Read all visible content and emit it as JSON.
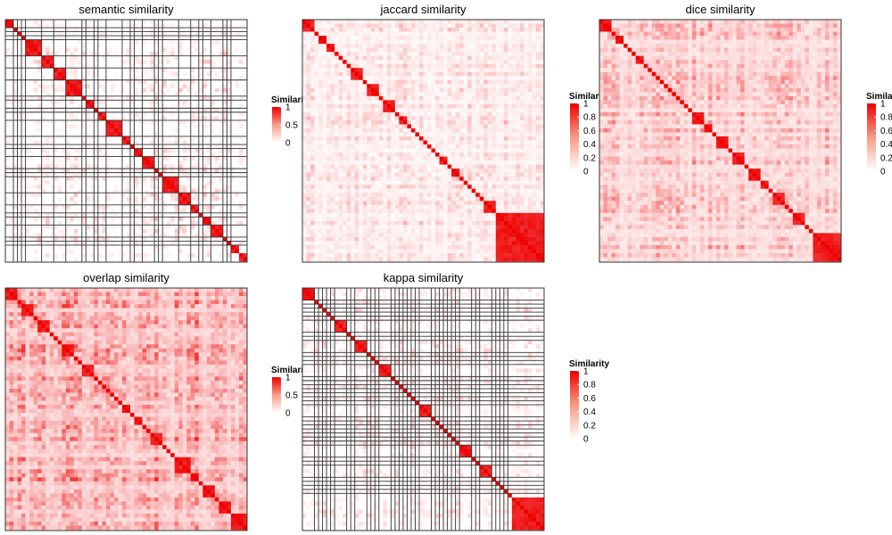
{
  "chart_data": [
    {
      "type": "heatmap",
      "title": "semantic similarity",
      "legend": {
        "title": "Similarity",
        "ticks": [
          "1",
          "0.5",
          "0"
        ],
        "range": [
          0,
          1
        ]
      },
      "matrix_size": 60,
      "diagonal_clusters": [
        2,
        1,
        1,
        1,
        4,
        3,
        3,
        4,
        1,
        2,
        1,
        2,
        4,
        2,
        1,
        2,
        3,
        1,
        1,
        4,
        3,
        2,
        1,
        2,
        3,
        1,
        1,
        2
      ],
      "cluster_borders": true,
      "background_similarity": [
        0,
        0.2
      ],
      "colors": {
        "low": "#ffffff",
        "high": "#ee0000"
      }
    },
    {
      "type": "heatmap",
      "title": "jaccard similarity",
      "legend": {
        "title": "Similarity",
        "ticks": [
          "1",
          "0.8",
          "0.6",
          "0.4",
          "0.2",
          "0"
        ],
        "range": [
          0,
          1
        ]
      },
      "matrix_size": 60,
      "diagonal_clusters": [
        3,
        1,
        2,
        2,
        1,
        1,
        1,
        1,
        3,
        1,
        3,
        1,
        3,
        1,
        2,
        1,
        1,
        1,
        1,
        1,
        1,
        1,
        1,
        2,
        1,
        2,
        1,
        1,
        1,
        1,
        1,
        1,
        3
      ],
      "cluster_borders": false,
      "background_similarity": [
        0.02,
        0.18
      ],
      "colors": {
        "low": "#ffffff",
        "high": "#ee0000"
      }
    },
    {
      "type": "heatmap",
      "title": "dice similarity",
      "legend": {
        "title": "Similarity",
        "ticks": [
          "1",
          "0.8",
          "0.6",
          "0.4",
          "0.2",
          "0"
        ],
        "range": [
          0,
          1
        ]
      },
      "matrix_size": 60,
      "diagonal_clusters": [
        3,
        1,
        2,
        1,
        1,
        1,
        2,
        1,
        1,
        1,
        1,
        1,
        1,
        1,
        1,
        1,
        1,
        1,
        1,
        3,
        2,
        1,
        3,
        1,
        3,
        1,
        3,
        2,
        1,
        3,
        1,
        1,
        3,
        1,
        1
      ],
      "cluster_borders": false,
      "background_similarity": [
        0.08,
        0.35
      ],
      "colors": {
        "low": "#ffffff",
        "high": "#ee0000"
      }
    },
    {
      "type": "heatmap",
      "title": "overlap similarity",
      "legend": {
        "title": "Similarity",
        "ticks": [
          "1",
          "0.5",
          "0"
        ],
        "range": [
          0,
          1
        ]
      },
      "matrix_size": 60,
      "diagonal_clusters": [
        3,
        1,
        3,
        1,
        3,
        1,
        1,
        1,
        3,
        1,
        1,
        3,
        1,
        1,
        1,
        1,
        1,
        1,
        1,
        2,
        1,
        2,
        1,
        1,
        3,
        1,
        1,
        1,
        4,
        2,
        1,
        3,
        1,
        3
      ],
      "cluster_borders": false,
      "background_similarity": [
        0.12,
        0.55
      ],
      "colors": {
        "low": "#ffffff",
        "high": "#ee0000"
      }
    },
    {
      "type": "heatmap",
      "title": "kappa similarity",
      "legend": {
        "title": "Similarity",
        "ticks": [
          "1",
          "0.8",
          "0.6",
          "0.4",
          "0.2",
          "0"
        ],
        "range": [
          0,
          1
        ]
      },
      "matrix_size": 60,
      "diagonal_clusters": [
        3,
        1,
        1,
        1,
        1,
        1,
        3,
        1,
        1,
        3,
        1,
        1,
        1,
        3,
        1,
        1,
        1,
        1,
        1,
        1,
        1,
        3,
        1,
        1,
        1,
        1,
        1,
        1,
        1,
        3,
        1,
        1,
        3,
        1,
        1,
        1,
        1,
        1
      ],
      "cluster_borders": true,
      "background_similarity": [
        0,
        0.15
      ],
      "colors": {
        "low": "#ffffff",
        "high": "#ee0000"
      }
    }
  ]
}
